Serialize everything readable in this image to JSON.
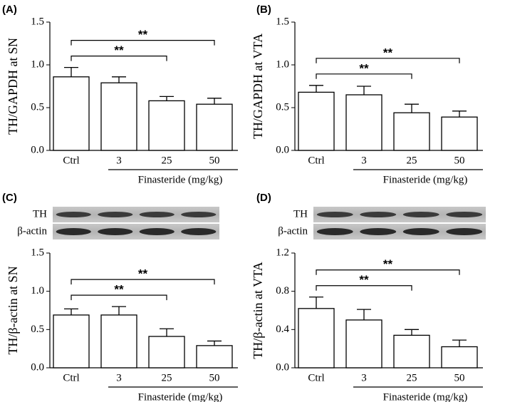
{
  "chart_data": [
    {
      "type": "bar",
      "label": "(A)",
      "ylabel": "TH/GAPDH at SN",
      "xlabel": "Finasteride (mg/kg)",
      "categories": [
        "Ctrl",
        "3",
        "25",
        "50"
      ],
      "values": [
        0.86,
        0.79,
        0.58,
        0.54
      ],
      "errors": [
        0.11,
        0.07,
        0.05,
        0.07
      ],
      "ylim": [
        0,
        1.5
      ],
      "yticks": [
        {
          "value": 0,
          "label": "0.0"
        },
        {
          "value": 0.5,
          "label": "0.5"
        },
        {
          "value": 1,
          "label": "1.0"
        },
        {
          "value": 1.5,
          "label": "1.5"
        }
      ],
      "annotations": [
        {
          "text": "**",
          "from": 0,
          "to": 2
        },
        {
          "text": "**",
          "from": 0,
          "to": 3
        }
      ],
      "color": "#ffffff"
    },
    {
      "type": "bar",
      "label": "(B)",
      "ylabel": "TH/GAPDH at VTA",
      "xlabel": "Finasteride (mg/kg)",
      "categories": [
        "Ctrl",
        "3",
        "25",
        "50"
      ],
      "values": [
        0.68,
        0.65,
        0.44,
        0.39
      ],
      "errors": [
        0.08,
        0.1,
        0.1,
        0.07
      ],
      "ylim": [
        0,
        1.5
      ],
      "yticks": [
        {
          "value": 0,
          "label": "0.0"
        },
        {
          "value": 0.5,
          "label": "0.5"
        },
        {
          "value": 1,
          "label": "1.0"
        },
        {
          "value": 1.5,
          "label": "1.5"
        }
      ],
      "annotations": [
        {
          "text": "**",
          "from": 0,
          "to": 2
        },
        {
          "text": "**",
          "from": 0,
          "to": 3
        }
      ],
      "color": "#ffffff"
    },
    {
      "type": "bar",
      "label": "(C)",
      "ylabel": "TH/β-actin at SN",
      "xlabel": "Finasteride (mg/kg)",
      "blot_labels": [
        "TH",
        "β-actin"
      ],
      "categories": [
        "Ctrl",
        "3",
        "25",
        "50"
      ],
      "values": [
        0.69,
        0.69,
        0.41,
        0.29
      ],
      "errors": [
        0.08,
        0.11,
        0.1,
        0.06
      ],
      "ylim": [
        0,
        1.5
      ],
      "yticks": [
        {
          "value": 0,
          "label": "0.0"
        },
        {
          "value": 0.5,
          "label": "0.5"
        },
        {
          "value": 1,
          "label": "1.0"
        },
        {
          "value": 1.5,
          "label": "1.5"
        }
      ],
      "annotations": [
        {
          "text": "**",
          "from": 0,
          "to": 2
        },
        {
          "text": "**",
          "from": 0,
          "to": 3
        }
      ],
      "color": "#ffffff"
    },
    {
      "type": "bar",
      "label": "(D)",
      "ylabel": "TH/β-actin at VTA",
      "xlabel": "Finasteride (mg/kg)",
      "blot_labels": [
        "TH",
        "β-actin"
      ],
      "categories": [
        "Ctrl",
        "3",
        "25",
        "50"
      ],
      "values": [
        0.62,
        0.5,
        0.34,
        0.22
      ],
      "errors": [
        0.12,
        0.11,
        0.06,
        0.07
      ],
      "ylim": [
        0,
        1.2
      ],
      "yticks": [
        {
          "value": 0,
          "label": "0.0"
        },
        {
          "value": 0.4,
          "label": "0.4"
        },
        {
          "value": 0.8,
          "label": "0.8"
        },
        {
          "value": 1.2,
          "label": "1.2"
        }
      ],
      "annotations": [
        {
          "text": "**",
          "from": 0,
          "to": 2
        },
        {
          "text": "**",
          "from": 0,
          "to": 3
        }
      ],
      "color": "#ffffff"
    }
  ]
}
